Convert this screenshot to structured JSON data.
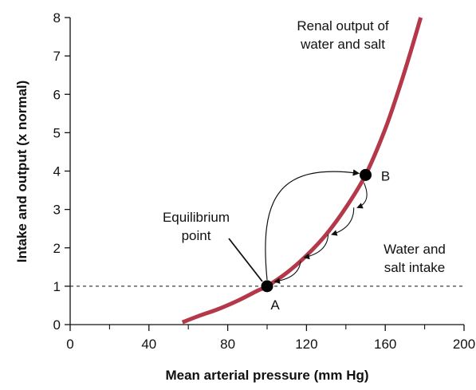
{
  "chart_data": {
    "type": "line",
    "xlabel": "Mean arterial pressure (mm Hg)",
    "ylabel": "Intake and output (x normal)",
    "xlim": [
      0,
      200
    ],
    "ylim": [
      0,
      8
    ],
    "xticks": [
      0,
      40,
      80,
      120,
      160,
      200
    ],
    "yticks": [
      0,
      1,
      2,
      3,
      4,
      5,
      6,
      7,
      8
    ],
    "series": [
      {
        "name": "Renal output of water and salt",
        "color": "#b5384a",
        "x": [
          57,
          65,
          75,
          85,
          95,
          100,
          110,
          120,
          130,
          140,
          150,
          160,
          168,
          174,
          178
        ],
        "y": [
          0.06,
          0.22,
          0.4,
          0.62,
          0.88,
          1.0,
          1.35,
          1.8,
          2.35,
          3.05,
          3.9,
          5.1,
          6.3,
          7.3,
          8.0
        ]
      },
      {
        "name": "Water and salt intake",
        "style": "dashed",
        "color": "#111111",
        "x": [
          0,
          200
        ],
        "y": [
          1,
          1
        ]
      }
    ],
    "points": [
      {
        "label": "A",
        "x": 100,
        "y": 1.0
      },
      {
        "label": "B",
        "x": 150,
        "y": 3.9
      }
    ],
    "annotations": {
      "renal_line1": "Renal output of",
      "renal_line2": "water and salt",
      "equilibrium_line1": "Equilibrium",
      "equilibrium_line2": "point",
      "intake_line1": "Water and",
      "intake_line2": "salt intake"
    }
  }
}
